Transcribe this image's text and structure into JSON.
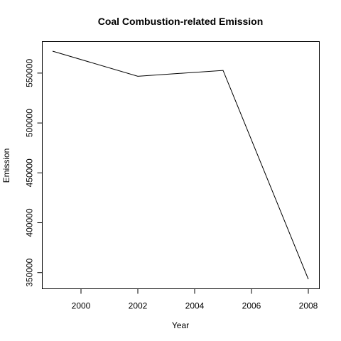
{
  "chart_data": {
    "type": "line",
    "title": "Coal Combustion-related Emission",
    "xlabel": "Year",
    "ylabel": "Emission",
    "x": [
      1999,
      2002,
      2005,
      2008
    ],
    "series": [
      {
        "values": [
          572000,
          546800,
          552700,
          343400
        ]
      }
    ],
    "xlim": [
      1999,
      2008
    ],
    "ylim": [
      343400,
      572000
    ],
    "x_ticks": [
      2000,
      2002,
      2004,
      2006,
      2008
    ],
    "x_tick_labels": [
      "2000",
      "2002",
      "2004",
      "2006",
      "2008"
    ],
    "y_ticks": [
      350000,
      400000,
      450000,
      500000,
      550000
    ],
    "y_tick_labels": [
      "350000",
      "400000",
      "450000",
      "500000",
      "550000"
    ],
    "grid": false,
    "line_color": "#000000"
  }
}
